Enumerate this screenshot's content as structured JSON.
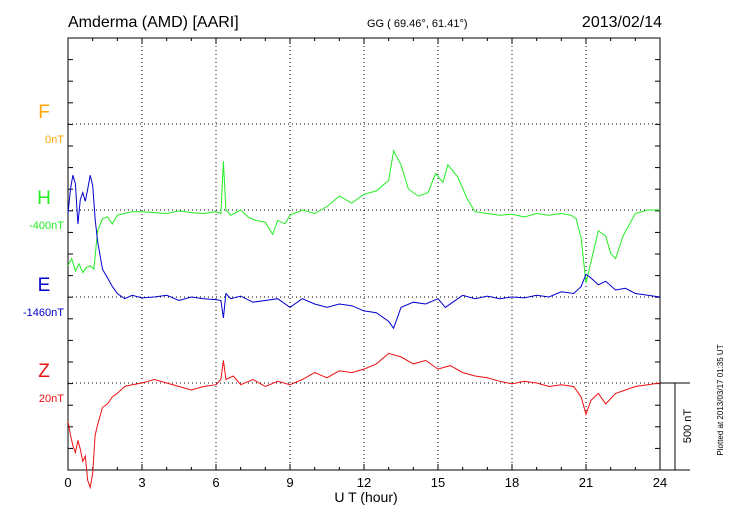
{
  "header": {
    "station": "Amderma (AMD)  [AARI]",
    "coords": "GG ( 69.46°,  61.41°)",
    "date": "2013/02/14"
  },
  "scale_label": "500 nT",
  "plotted_stamp": "Plotted at 2013/03/17 01:35 UT",
  "chart_data": {
    "type": "line",
    "title": "Amderma (AMD)  [AARI]",
    "xlabel": "U T (hour)",
    "xlim": [
      0,
      24
    ],
    "x_ticks": [
      0,
      3,
      6,
      9,
      12,
      15,
      18,
      21,
      24
    ],
    "grid": true,
    "scale_bar_nT": 500,
    "channels": [
      {
        "name": "F",
        "baseline": "0nT",
        "color": "#ffa500",
        "values": []
      },
      {
        "name": "H",
        "baseline": "-400nT",
        "color": "#22ee22",
        "values": [
          [
            0,
            -320
          ],
          [
            0.15,
            -280
          ],
          [
            0.3,
            -350
          ],
          [
            0.45,
            -310
          ],
          [
            0.6,
            -360
          ],
          [
            0.75,
            -330
          ],
          [
            0.9,
            -320
          ],
          [
            1.05,
            -340
          ],
          [
            1.2,
            -120
          ],
          [
            1.4,
            -50
          ],
          [
            1.6,
            -40
          ],
          [
            1.8,
            -80
          ],
          [
            2.0,
            -30
          ],
          [
            2.3,
            -20
          ],
          [
            2.6,
            -10
          ],
          [
            3.0,
            -10
          ],
          [
            3.5,
            -15
          ],
          [
            4.0,
            -20
          ],
          [
            4.5,
            -5
          ],
          [
            5.0,
            -15
          ],
          [
            5.5,
            -20
          ],
          [
            6.0,
            -10
          ],
          [
            6.2,
            -20
          ],
          [
            6.3,
            280
          ],
          [
            6.4,
            0
          ],
          [
            6.6,
            -30
          ],
          [
            7.0,
            0
          ],
          [
            7.3,
            -40
          ],
          [
            7.6,
            -60
          ],
          [
            8.0,
            -70
          ],
          [
            8.3,
            -140
          ],
          [
            8.5,
            -60
          ],
          [
            8.8,
            -80
          ],
          [
            9.0,
            -30
          ],
          [
            9.5,
            0
          ],
          [
            10.0,
            -20
          ],
          [
            10.5,
            20
          ],
          [
            11.0,
            80
          ],
          [
            11.5,
            40
          ],
          [
            12.0,
            90
          ],
          [
            12.5,
            110
          ],
          [
            13.0,
            170
          ],
          [
            13.2,
            340
          ],
          [
            13.5,
            260
          ],
          [
            13.8,
            120
          ],
          [
            14.2,
            80
          ],
          [
            14.6,
            100
          ],
          [
            14.9,
            210
          ],
          [
            15.2,
            160
          ],
          [
            15.4,
            260
          ],
          [
            15.8,
            190
          ],
          [
            16.2,
            60
          ],
          [
            16.5,
            -10
          ],
          [
            17.0,
            -20
          ],
          [
            17.5,
            -30
          ],
          [
            18.0,
            -25
          ],
          [
            18.5,
            -40
          ],
          [
            19.0,
            -20
          ],
          [
            19.5,
            -30
          ],
          [
            20.0,
            -20
          ],
          [
            20.4,
            -30
          ],
          [
            20.6,
            -50
          ],
          [
            20.8,
            -160
          ],
          [
            21.0,
            -420
          ],
          [
            21.2,
            -300
          ],
          [
            21.5,
            -120
          ],
          [
            21.8,
            -150
          ],
          [
            22.0,
            -250
          ],
          [
            22.2,
            -280
          ],
          [
            22.5,
            -150
          ],
          [
            23.0,
            -20
          ],
          [
            23.5,
            0
          ],
          [
            24.0,
            0
          ]
        ]
      },
      {
        "name": "E",
        "baseline": "-1460nT",
        "color": "#0000cc",
        "values": [
          [
            0,
            480
          ],
          [
            0.1,
            620
          ],
          [
            0.2,
            700
          ],
          [
            0.3,
            650
          ],
          [
            0.4,
            420
          ],
          [
            0.5,
            560
          ],
          [
            0.6,
            600
          ],
          [
            0.7,
            550
          ],
          [
            0.8,
            620
          ],
          [
            0.9,
            700
          ],
          [
            1.0,
            640
          ],
          [
            1.1,
            450
          ],
          [
            1.2,
            320
          ],
          [
            1.4,
            160
          ],
          [
            1.6,
            110
          ],
          [
            1.8,
            60
          ],
          [
            2.0,
            20
          ],
          [
            2.3,
            -10
          ],
          [
            2.6,
            10
          ],
          [
            3.0,
            -5
          ],
          [
            3.5,
            0
          ],
          [
            4.0,
            10
          ],
          [
            4.5,
            -20
          ],
          [
            5.0,
            0
          ],
          [
            5.5,
            -10
          ],
          [
            6.0,
            -15
          ],
          [
            6.2,
            -20
          ],
          [
            6.3,
            -120
          ],
          [
            6.4,
            20
          ],
          [
            6.6,
            -10
          ],
          [
            7.0,
            5
          ],
          [
            7.5,
            -30
          ],
          [
            8.0,
            -20
          ],
          [
            8.5,
            -10
          ],
          [
            9.0,
            -60
          ],
          [
            9.5,
            -10
          ],
          [
            10.0,
            -40
          ],
          [
            10.5,
            -60
          ],
          [
            11.0,
            -40
          ],
          [
            11.5,
            -50
          ],
          [
            12.0,
            -80
          ],
          [
            12.5,
            -90
          ],
          [
            13.0,
            -140
          ],
          [
            13.2,
            -180
          ],
          [
            13.5,
            -60
          ],
          [
            14.0,
            -30
          ],
          [
            14.5,
            -40
          ],
          [
            15.0,
            -10
          ],
          [
            15.3,
            -60
          ],
          [
            15.6,
            -30
          ],
          [
            16.0,
            10
          ],
          [
            16.5,
            -10
          ],
          [
            17.0,
            5
          ],
          [
            17.5,
            -10
          ],
          [
            18.0,
            0
          ],
          [
            18.5,
            -5
          ],
          [
            19.0,
            10
          ],
          [
            19.5,
            0
          ],
          [
            20.0,
            30
          ],
          [
            20.5,
            20
          ],
          [
            20.8,
            60
          ],
          [
            21.0,
            130
          ],
          [
            21.2,
            110
          ],
          [
            21.5,
            70
          ],
          [
            21.8,
            90
          ],
          [
            22.2,
            40
          ],
          [
            22.6,
            50
          ],
          [
            23.0,
            20
          ],
          [
            23.5,
            10
          ],
          [
            24.0,
            0
          ]
        ]
      },
      {
        "name": "Z",
        "baseline": "20nT",
        "color": "#ee1111",
        "values": [
          [
            0,
            -220
          ],
          [
            0.1,
            -300
          ],
          [
            0.2,
            -360
          ],
          [
            0.3,
            -400
          ],
          [
            0.4,
            -330
          ],
          [
            0.5,
            -380
          ],
          [
            0.6,
            -450
          ],
          [
            0.7,
            -420
          ],
          [
            0.8,
            -560
          ],
          [
            0.9,
            -600
          ],
          [
            1.0,
            -520
          ],
          [
            1.1,
            -300
          ],
          [
            1.2,
            -240
          ],
          [
            1.4,
            -140
          ],
          [
            1.6,
            -120
          ],
          [
            1.8,
            -80
          ],
          [
            2.0,
            -60
          ],
          [
            2.3,
            -20
          ],
          [
            2.6,
            -10
          ],
          [
            3.0,
            0
          ],
          [
            3.5,
            20
          ],
          [
            4.0,
            0
          ],
          [
            4.5,
            -20
          ],
          [
            5.0,
            -40
          ],
          [
            5.5,
            -20
          ],
          [
            6.0,
            -10
          ],
          [
            6.2,
            20
          ],
          [
            6.3,
            130
          ],
          [
            6.4,
            20
          ],
          [
            6.7,
            40
          ],
          [
            7.0,
            -10
          ],
          [
            7.5,
            20
          ],
          [
            8.0,
            -20
          ],
          [
            8.5,
            10
          ],
          [
            9.0,
            -10
          ],
          [
            9.5,
            20
          ],
          [
            10.0,
            60
          ],
          [
            10.5,
            30
          ],
          [
            11.0,
            70
          ],
          [
            11.5,
            60
          ],
          [
            12.0,
            80
          ],
          [
            12.5,
            110
          ],
          [
            13.0,
            170
          ],
          [
            13.5,
            150
          ],
          [
            14.0,
            110
          ],
          [
            14.5,
            130
          ],
          [
            15.0,
            80
          ],
          [
            15.5,
            100
          ],
          [
            16.0,
            60
          ],
          [
            16.5,
            40
          ],
          [
            17.0,
            30
          ],
          [
            17.5,
            10
          ],
          [
            18.0,
            -5
          ],
          [
            18.5,
            10
          ],
          [
            19.0,
            0
          ],
          [
            19.5,
            -20
          ],
          [
            20.0,
            -10
          ],
          [
            20.5,
            -20
          ],
          [
            20.8,
            -80
          ],
          [
            21.0,
            -180
          ],
          [
            21.2,
            -100
          ],
          [
            21.5,
            -60
          ],
          [
            21.8,
            -120
          ],
          [
            22.2,
            -60
          ],
          [
            22.6,
            -40
          ],
          [
            23.0,
            -20
          ],
          [
            23.5,
            -10
          ],
          [
            24.0,
            0
          ]
        ]
      }
    ]
  }
}
